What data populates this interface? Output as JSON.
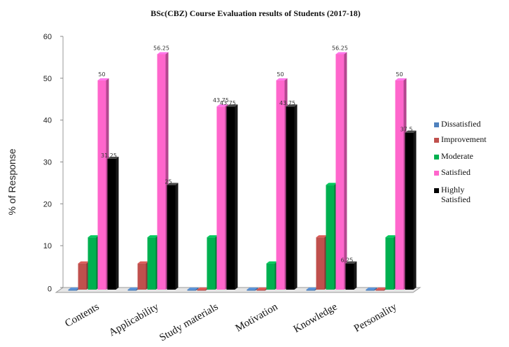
{
  "chart_data": {
    "type": "bar",
    "title": "BSc(CBZ) Course Evaluation  results of  Students (2017-18)",
    "ylabel": "% of Response",
    "xlabel": "",
    "ylim": [
      0,
      60
    ],
    "yticks": [
      0,
      10,
      20,
      30,
      40,
      50,
      60
    ],
    "categories": [
      "Contents",
      "Applicability",
      "Study materials",
      "Motivation",
      "Knowledge",
      "Personality"
    ],
    "series": [
      {
        "name": "Dissatisfied",
        "color": "#4f81bd",
        "values": [
          0,
          0,
          0,
          0,
          0,
          0
        ]
      },
      {
        "name": "Improvement",
        "color": "#c0504d",
        "values": [
          6.25,
          6.25,
          0,
          0,
          12.5,
          0
        ]
      },
      {
        "name": "Moderate",
        "color": "#00b050",
        "values": [
          12.5,
          12.5,
          12.5,
          6.25,
          25,
          12.5
        ]
      },
      {
        "name": "Satisfied",
        "color": "#ff66cc",
        "values": [
          50,
          56.25,
          43.75,
          50,
          56.25,
          50
        ]
      },
      {
        "name": "Highly Satisfied",
        "color": "#000000",
        "values": [
          31.25,
          25,
          43.75,
          43.75,
          6.25,
          37.5
        ]
      }
    ],
    "data_labels": [
      {
        "category": "Contents",
        "series": "Satisfied",
        "text": "50"
      },
      {
        "category": "Contents",
        "series": "Highly Satisfied",
        "text": "31.25"
      },
      {
        "category": "Applicability",
        "series": "Satisfied",
        "text": "56.25"
      },
      {
        "category": "Applicability",
        "series": "Highly Satisfied",
        "text": "25"
      },
      {
        "category": "Study materials",
        "series": "Satisfied",
        "text": "43.75"
      },
      {
        "category": "Study materials",
        "series": "Highly Satisfied",
        "text": "43.75"
      },
      {
        "category": "Motivation",
        "series": "Satisfied",
        "text": "50"
      },
      {
        "category": "Motivation",
        "series": "Highly Satisfied",
        "text": "43.75"
      },
      {
        "category": "Knowledge",
        "series": "Satisfied",
        "text": "56.25"
      },
      {
        "category": "Knowledge",
        "series": "Highly Satisfied",
        "text": "6.25"
      },
      {
        "category": "Personality",
        "series": "Satisfied",
        "text": "50"
      },
      {
        "category": "Personality",
        "series": "Highly Satisfied",
        "text": "37.5"
      }
    ],
    "legend": {
      "position": "right",
      "entries": [
        "Dissatisfied",
        "Improvement",
        "Moderate",
        "Satisfied",
        "Highly Satisfied"
      ]
    },
    "grid": false
  }
}
